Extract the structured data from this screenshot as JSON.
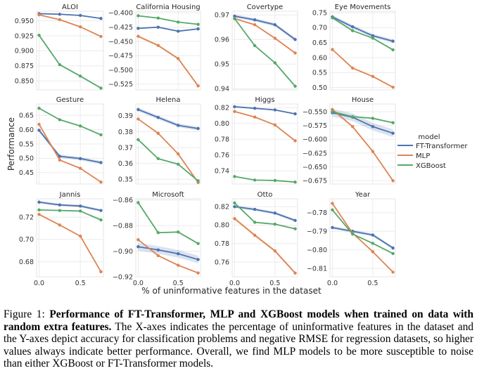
{
  "chart_data": {
    "type": "line",
    "layout": "facet-grid 3x4",
    "ylabel": "Performance",
    "xlabel": "% of uninformative features in the dataset",
    "x": [
      0.0,
      0.25,
      0.5,
      0.75
    ],
    "xticks": [
      "0.0",
      "0.5"
    ],
    "xtick_values": [
      0.0,
      0.5
    ],
    "grid": true,
    "legend": {
      "title": "model",
      "placement": "right",
      "entries": [
        "FT-Transformer",
        "MLP",
        "XGBoost"
      ]
    },
    "colors": {
      "FT-Transformer": "#4c72b0",
      "MLP": "#dd8452",
      "XGBoost": "#55a868"
    },
    "panels": [
      {
        "title": "ALOI",
        "ylim": [
          0.835,
          0.966
        ],
        "yticks": [
          0.85,
          0.875,
          0.9,
          0.925,
          0.95
        ],
        "ytick_labels": [
          "0.850",
          "0.875",
          "0.900",
          "0.925",
          "0.950"
        ],
        "series": [
          {
            "name": "FT-Transformer",
            "values": [
              0.962,
              0.961,
              0.959,
              0.954
            ],
            "ci": 0.0005
          },
          {
            "name": "MLP",
            "values": [
              0.96,
              0.952,
              0.94,
              0.924
            ],
            "ci": 0.0005
          },
          {
            "name": "XGBoost",
            "values": [
              0.926,
              0.877,
              0.858,
              0.838
            ],
            "ci": 0.0
          }
        ]
      },
      {
        "title": "California Housing",
        "ylim": [
          -0.535,
          -0.397
        ],
        "yticks": [
          -0.4,
          -0.425,
          -0.45,
          -0.475,
          -0.5,
          -0.525
        ],
        "ytick_labels": [
          "−0.400",
          "−0.425",
          "−0.450",
          "−0.475",
          "−0.500",
          "−0.525"
        ],
        "series": [
          {
            "name": "FT-Transformer",
            "values": [
              -0.427,
              -0.425,
              -0.432,
              -0.428
            ],
            "ci": 0.001
          },
          {
            "name": "MLP",
            "values": [
              -0.441,
              -0.457,
              -0.48,
              -0.528
            ],
            "ci": 0.002
          },
          {
            "name": "XGBoost",
            "values": [
              -0.405,
              -0.409,
              -0.416,
              -0.42
            ],
            "ci": 0.0
          }
        ]
      },
      {
        "title": "Covertype",
        "ylim": [
          0.9395,
          0.9715
        ],
        "yticks": [
          0.94,
          0.95,
          0.96,
          0.97
        ],
        "ytick_labels": [
          "0.94",
          "0.95",
          "0.96",
          "0.97"
        ],
        "series": [
          {
            "name": "FT-Transformer",
            "values": [
              0.9695,
              0.968,
              0.966,
              0.96
            ],
            "ci": 0.0007
          },
          {
            "name": "MLP",
            "values": [
              0.9685,
              0.966,
              0.9605,
              0.9545
            ],
            "ci": 0.0003
          },
          {
            "name": "XGBoost",
            "values": [
              0.9685,
              0.9575,
              0.9505,
              0.941
            ],
            "ci": 0.0
          }
        ]
      },
      {
        "title": "Eye Movements",
        "ylim": [
          0.492,
          0.755
        ],
        "yticks": [
          0.5,
          0.55,
          0.6,
          0.65,
          0.7,
          0.75
        ],
        "ytick_labels": [
          "0.50",
          "0.55",
          "0.60",
          "0.65",
          "0.70",
          "0.75"
        ],
        "series": [
          {
            "name": "FT-Transformer",
            "values": [
              0.736,
              0.703,
              0.673,
              0.655
            ],
            "ci": 0.006
          },
          {
            "name": "MLP",
            "values": [
              0.627,
              0.565,
              0.537,
              0.501
            ],
            "ci": 0.002
          },
          {
            "name": "XGBoost",
            "values": [
              0.733,
              0.69,
              0.665,
              0.626
            ],
            "ci": 0.0
          }
        ]
      },
      {
        "title": "Gesture",
        "ylim": [
          0.41,
          0.69
        ],
        "yticks": [
          0.45,
          0.5,
          0.55,
          0.6,
          0.65
        ],
        "ytick_labels": [
          "0.45",
          "0.50",
          "0.55",
          "0.60",
          "0.65"
        ],
        "series": [
          {
            "name": "FT-Transformer",
            "values": [
              0.598,
              0.507,
              0.499,
              0.485
            ],
            "ci": 0.006
          },
          {
            "name": "MLP",
            "values": [
              0.619,
              0.494,
              0.465,
              0.417
            ],
            "ci": 0.002
          },
          {
            "name": "XGBoost",
            "values": [
              0.675,
              0.635,
              0.613,
              0.582
            ],
            "ci": 0.0
          }
        ]
      },
      {
        "title": "Helena",
        "ylim": [
          0.347,
          0.3975
        ],
        "yticks": [
          0.35,
          0.36,
          0.37,
          0.38,
          0.39
        ],
        "ytick_labels": [
          "0.35",
          "0.36",
          "0.37",
          "0.38",
          "0.39"
        ],
        "series": [
          {
            "name": "FT-Transformer",
            "values": [
              0.394,
              0.389,
              0.384,
              0.382
            ],
            "ci": 0.0012
          },
          {
            "name": "MLP",
            "values": [
              0.388,
              0.379,
              0.366,
              0.348
            ],
            "ci": 0.0004
          },
          {
            "name": "XGBoost",
            "values": [
              0.375,
              0.363,
              0.3595,
              0.349
            ],
            "ci": 0.0
          }
        ]
      },
      {
        "title": "Higgs",
        "ylim": [
          0.7235,
          0.8245
        ],
        "yticks": [
          0.74,
          0.76,
          0.78,
          0.8,
          0.82
        ],
        "ytick_labels": [
          "0.74",
          "0.76",
          "0.78",
          "0.80",
          "0.82"
        ],
        "series": [
          {
            "name": "FT-Transformer",
            "values": [
              0.821,
              0.819,
              0.817,
              0.812
            ],
            "ci": 0.0008
          },
          {
            "name": "MLP",
            "values": [
              0.815,
              0.808,
              0.798,
              0.778
            ],
            "ci": 0.0006
          },
          {
            "name": "XGBoost",
            "values": [
              0.733,
              0.7285,
              0.728,
              0.726
            ],
            "ci": 0.0
          }
        ]
      },
      {
        "title": "House",
        "ylim": [
          -0.681,
          -0.536
        ],
        "yticks": [
          -0.55,
          -0.575,
          -0.6,
          -0.625,
          -0.65,
          -0.675
        ],
        "ytick_labels": [
          "−0.550",
          "−0.575",
          "−0.600",
          "−0.625",
          "−0.650",
          "−0.675"
        ],
        "series": [
          {
            "name": "FT-Transformer",
            "values": [
              -0.552,
              -0.56,
              -0.577,
              -0.589
            ],
            "ci": 0.007
          },
          {
            "name": "MLP",
            "values": [
              -0.546,
              -0.577,
              -0.622,
              -0.675
            ],
            "ci": 0.002
          },
          {
            "name": "XGBoost",
            "values": [
              -0.55,
              -0.559,
              -0.562,
              -0.57
            ],
            "ci": 0.0
          }
        ]
      },
      {
        "title": "Jannis",
        "ylim": [
          0.6665,
          0.7365
        ],
        "yticks": [
          0.68,
          0.7,
          0.72
        ],
        "ytick_labels": [
          "0.68",
          "0.70",
          "0.72"
        ],
        "series": [
          {
            "name": "FT-Transformer",
            "values": [
              0.7335,
              0.731,
              0.73,
              0.726
            ],
            "ci": 0.0012
          },
          {
            "name": "MLP",
            "values": [
              0.7225,
              0.713,
              0.703,
              0.671
            ],
            "ci": 0.0005
          },
          {
            "name": "XGBoost",
            "values": [
              0.7265,
              0.726,
              0.7255,
              0.7175
            ],
            "ci": 0.0
          }
        ]
      },
      {
        "title": "Microsoft",
        "ylim": [
          -0.92,
          -0.859
        ],
        "yticks": [
          -0.86,
          -0.88,
          -0.9,
          -0.92
        ],
        "ytick_labels": [
          "−0.86",
          "−0.88",
          "−0.90",
          "−0.92"
        ],
        "series": [
          {
            "name": "FT-Transformer",
            "values": [
              -0.8965,
              -0.899,
              -0.902,
              -0.9065
            ],
            "ci": 0.003
          },
          {
            "name": "MLP",
            "values": [
              -0.891,
              -0.9035,
              -0.911,
              -0.917
            ],
            "ci": 0.0005
          },
          {
            "name": "XGBoost",
            "values": [
              -0.862,
              -0.8855,
              -0.885,
              -0.894
            ],
            "ci": 0.0
          }
        ]
      },
      {
        "title": "Otto",
        "ylim": [
          0.744,
          0.8285
        ],
        "yticks": [
          0.76,
          0.78,
          0.8,
          0.82
        ],
        "ytick_labels": [
          "0.76",
          "0.78",
          "0.80",
          "0.82"
        ],
        "series": [
          {
            "name": "FT-Transformer",
            "values": [
              0.82,
              0.817,
              0.813,
              0.805
            ],
            "ci": 0.0015
          },
          {
            "name": "MLP",
            "values": [
              0.807,
              0.789,
              0.772,
              0.748
            ],
            "ci": 0.0015
          },
          {
            "name": "XGBoost",
            "values": [
              0.824,
              0.803,
              0.801,
              0.796
            ],
            "ci": 0.0
          }
        ]
      },
      {
        "title": "Year",
        "ylim": [
          -0.8145,
          -0.7725
        ],
        "yticks": [
          -0.78,
          -0.79,
          -0.8,
          -0.81
        ],
        "ytick_labels": [
          "−0.78",
          "−0.79",
          "−0.80",
          "−0.81"
        ],
        "series": [
          {
            "name": "FT-Transformer",
            "values": [
              -0.788,
              -0.79,
              -0.792,
              -0.799
            ],
            "ci": 0.0008
          },
          {
            "name": "MLP",
            "values": [
              -0.775,
              -0.791,
              -0.801,
              -0.812
            ],
            "ci": 0.0002
          },
          {
            "name": "XGBoost",
            "values": [
              -0.7785,
              -0.7915,
              -0.7965,
              -0.802
            ],
            "ci": 0.0
          }
        ]
      }
    ]
  },
  "caption": {
    "label": "Figure 1:",
    "bold": "Performance of FT-Transformer, MLP and XGBoost models when trained on data with random extra features.",
    "text": "The X-axes indicates the percentage of uninformative features in the dataset and the Y-axes depict accuracy for classification problems and negative RMSE for regression datasets, so higher values always indicate better performance. Overall, we find MLP models to be more susceptible to noise than either XGBoost or FT-Transformer models."
  }
}
